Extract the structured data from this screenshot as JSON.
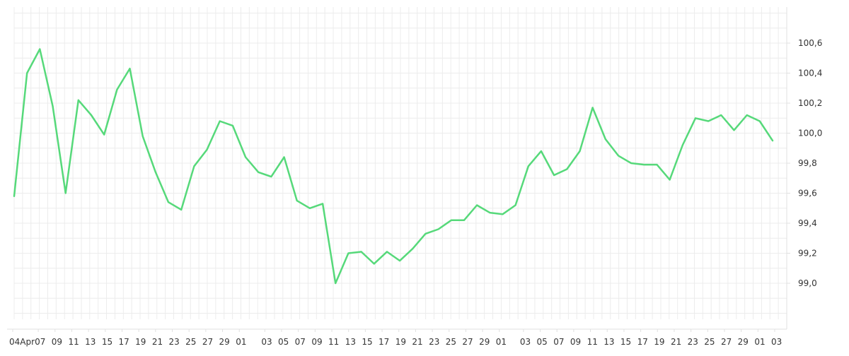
{
  "chart_data": {
    "type": "line",
    "title": "",
    "xlabel": "",
    "ylabel": "",
    "grid": true,
    "y_axis_side": "right",
    "colors": {
      "line": "#56d97a",
      "grid": "#ececec",
      "axis": "#e0e0e0",
      "tick_text": "#333333"
    },
    "ylim": [
      98.76,
      100.84
    ],
    "y_ticks": [
      "99,0",
      "99,2",
      "99,4",
      "99,6",
      "99,8",
      "100,0",
      "100,2",
      "100,4",
      "100,6"
    ],
    "y_tick_values": [
      99.0,
      99.2,
      99.4,
      99.6,
      99.8,
      100.0,
      100.2,
      100.4,
      100.6
    ],
    "x_ticks": [
      "04Apr",
      "07",
      "09",
      "11",
      "13",
      "15",
      "17",
      "19",
      "21",
      "23",
      "25",
      "27",
      "29",
      "01",
      "03",
      "05",
      "07",
      "09",
      "11",
      "13",
      "15",
      "17",
      "19",
      "21",
      "23",
      "25",
      "27",
      "29",
      "01",
      "03",
      "05",
      "07",
      "09",
      "11",
      "13",
      "15",
      "17",
      "19",
      "21",
      "23",
      "25",
      "27",
      "29",
      "01",
      "03"
    ],
    "series": [
      {
        "values": [
          99.58,
          100.4,
          100.56,
          100.18,
          99.6,
          100.22,
          100.12,
          99.99,
          100.29,
          100.43,
          99.98,
          99.74,
          99.54,
          99.49,
          99.78,
          99.89,
          100.08,
          100.05,
          99.84,
          99.74,
          99.71,
          99.84,
          99.55,
          99.5,
          99.53,
          99.0,
          99.2,
          99.21,
          99.13,
          99.21,
          99.15,
          99.23,
          99.33,
          99.36,
          99.42,
          99.42,
          99.52,
          99.47,
          99.46,
          99.52,
          99.78,
          99.88,
          99.72,
          99.76,
          99.88,
          100.17,
          99.96,
          99.85,
          99.8,
          99.79,
          99.79,
          99.69,
          99.92,
          100.1,
          100.08,
          100.12,
          100.02,
          100.12,
          100.08,
          99.95
        ]
      }
    ]
  }
}
